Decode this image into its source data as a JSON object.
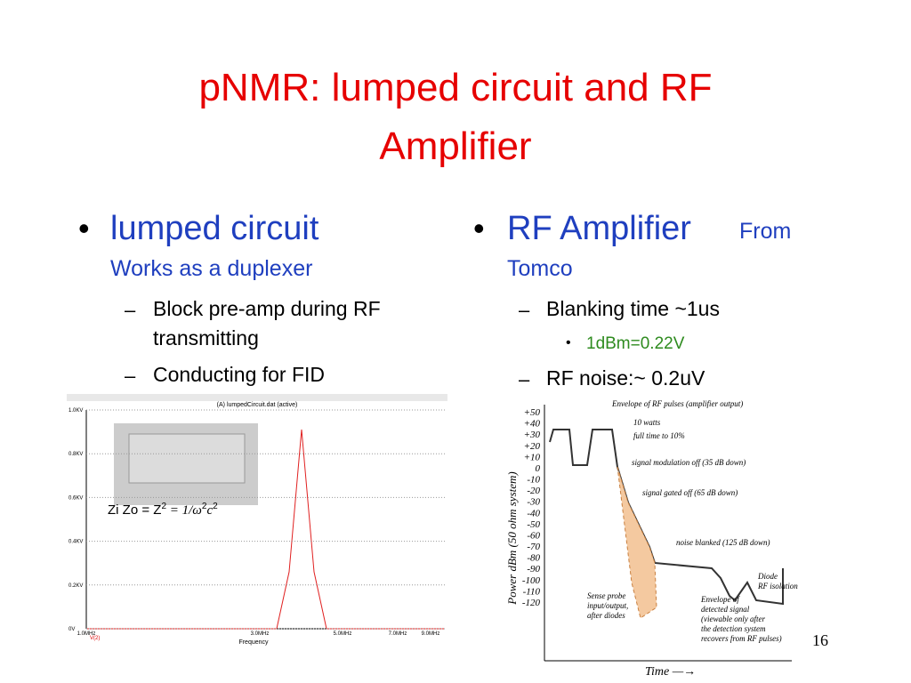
{
  "title": [
    "pNMR: lumped circuit and RF",
    "Amplifier"
  ],
  "left": {
    "bullet": "lumped circuit",
    "sub": "Works as a duplexer",
    "items": [
      [
        "Block pre-amp during RF",
        "transmitting"
      ],
      [
        "Conducting for FID"
      ]
    ]
  },
  "right": {
    "bullet": "RF Amplifier",
    "from": [
      "From",
      "Tomco"
    ],
    "items": [
      "Blanking time ~1us",
      "RF noise:~ 0.2uV"
    ],
    "subitem": "1dBm=0.22V"
  },
  "left_plot": {
    "header": "(A) lumpedCircuit.dat (active)",
    "yticks": [
      "1.0KV",
      "0.8KV",
      "0.6KV",
      "0.4KV",
      "0.2KV",
      "0V"
    ],
    "xticks": [
      "1.0MHz",
      "3.0MHz",
      "5.0MHz",
      "7.0MHz",
      "9.0MHz"
    ],
    "xlabel": "Frequency",
    "legend": "V(2)",
    "formula": [
      "Zi Zo = Z",
      "2",
      " = 1/ω",
      "2",
      "c",
      "2"
    ]
  },
  "right_plot": {
    "yticks": [
      "+50",
      "+40",
      "+30",
      "+20",
      "+10",
      "0",
      "-10",
      "-20",
      "-30",
      "-40",
      "-50",
      "-60",
      "-70",
      "-80",
      "-90",
      "-100",
      "-110",
      "-120"
    ],
    "ylabel": "Power dBm (50 ohm system)",
    "xlabel": "Time —→",
    "annotations": [
      [
        "Envelope of RF pulses (amplifier output)"
      ],
      [
        "10 watts"
      ],
      [
        "full time to 10%"
      ],
      [
        "signal modulation off (35 dB down)"
      ],
      [
        "signal gated off (65 dB down)"
      ],
      [
        "noise blanked (125 dB down)"
      ],
      [
        "Diode",
        "RF isolation"
      ],
      [
        "Sense probe",
        "input/output,",
        "after diodes"
      ],
      [
        "Envelope of",
        "detected signal",
        "(viewable only after",
        "the detection system",
        "recovers from RF pulses)"
      ]
    ]
  },
  "page_number": "16"
}
